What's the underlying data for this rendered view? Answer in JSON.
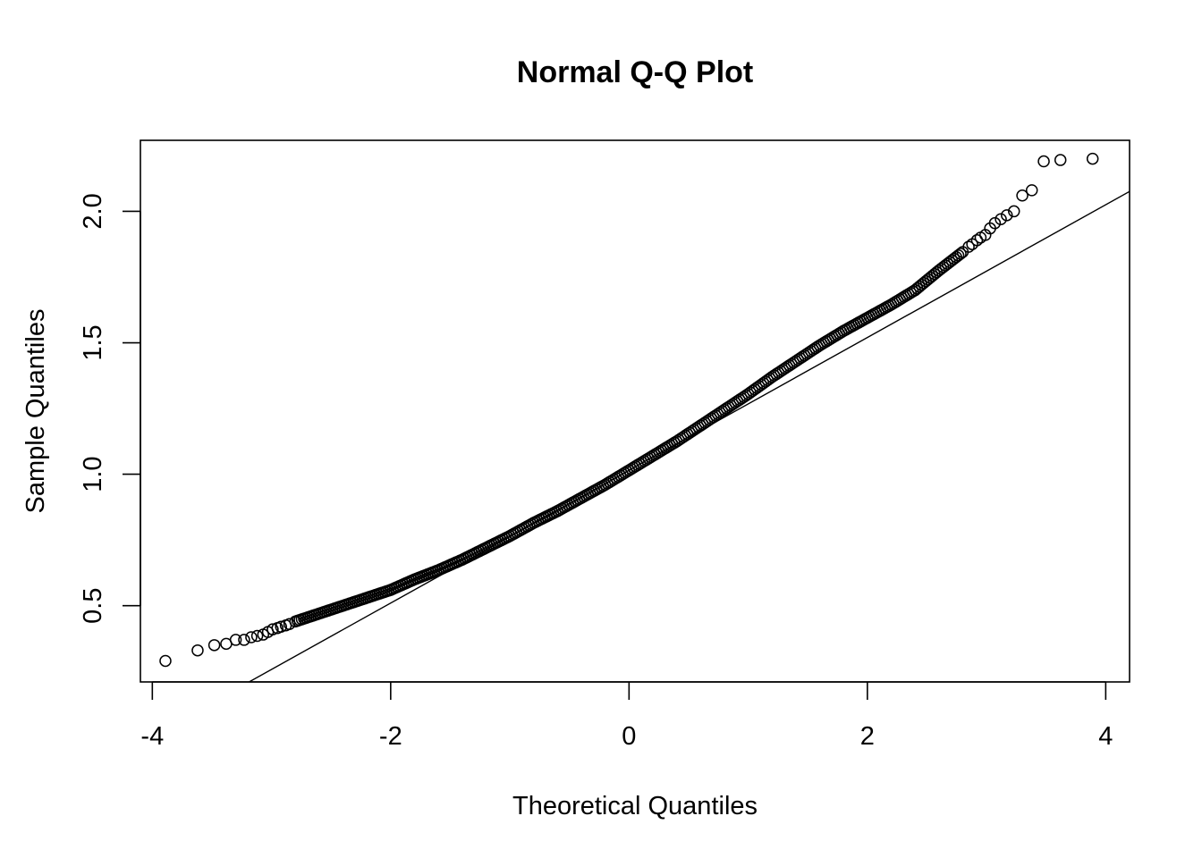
{
  "chart_data": {
    "type": "scatter",
    "title": "Normal Q-Q Plot",
    "xlabel": "Theoretical Quantiles",
    "ylabel": "Sample Quantiles",
    "xlim": [
      -4.1,
      4.2
    ],
    "ylim": [
      0.21,
      2.27
    ],
    "x_ticks": [
      -4,
      -2,
      0,
      2,
      4
    ],
    "x_tick_labels": [
      "-4",
      "-2",
      "0",
      "2",
      "4"
    ],
    "y_ticks": [
      0.5,
      1.0,
      1.5,
      2.0
    ],
    "y_tick_labels": [
      "0.5",
      "1.0",
      "1.5",
      "2.0"
    ],
    "grid": false,
    "legend": "none",
    "point_style": "open-circle",
    "colors": {
      "points": "#000000",
      "line": "#000000"
    },
    "qq_line": {
      "intercept": 1.015,
      "slope": 0.2525
    },
    "series": [
      {
        "x": [
          -3.89,
          -3.62,
          -3.48,
          -3.38,
          -3.3,
          -3.23,
          -3.17,
          -3.12,
          -3.07,
          -3.03,
          -2.99,
          -2.95,
          -2.92,
          -2.88,
          -2.85,
          -2.8,
          -2.6,
          -2.4,
          -2.2,
          -2.0,
          -1.8,
          -1.6,
          -1.4,
          -1.2,
          -1.0,
          -0.8,
          -0.6,
          -0.4,
          -0.2,
          0.0,
          0.2,
          0.4,
          0.6,
          0.8,
          1.0,
          1.2,
          1.4,
          1.6,
          1.8,
          2.0,
          2.2,
          2.4,
          2.6,
          2.8,
          2.85,
          2.88,
          2.92,
          2.95,
          2.99,
          3.03,
          3.07,
          3.12,
          3.17,
          3.23,
          3.3,
          3.38,
          3.48,
          3.62,
          3.89
        ],
        "y": [
          0.29,
          0.33,
          0.35,
          0.355,
          0.37,
          0.37,
          0.38,
          0.385,
          0.39,
          0.4,
          0.41,
          0.415,
          0.42,
          0.425,
          0.43,
          0.44,
          0.47,
          0.5,
          0.53,
          0.56,
          0.6,
          0.635,
          0.675,
          0.72,
          0.765,
          0.815,
          0.86,
          0.91,
          0.96,
          1.015,
          1.07,
          1.125,
          1.185,
          1.245,
          1.305,
          1.37,
          1.43,
          1.49,
          1.545,
          1.595,
          1.645,
          1.7,
          1.775,
          1.845,
          1.865,
          1.875,
          1.89,
          1.9,
          1.91,
          1.935,
          1.955,
          1.97,
          1.985,
          2.0,
          2.06,
          2.08,
          2.19,
          2.195,
          2.2
        ]
      }
    ]
  }
}
